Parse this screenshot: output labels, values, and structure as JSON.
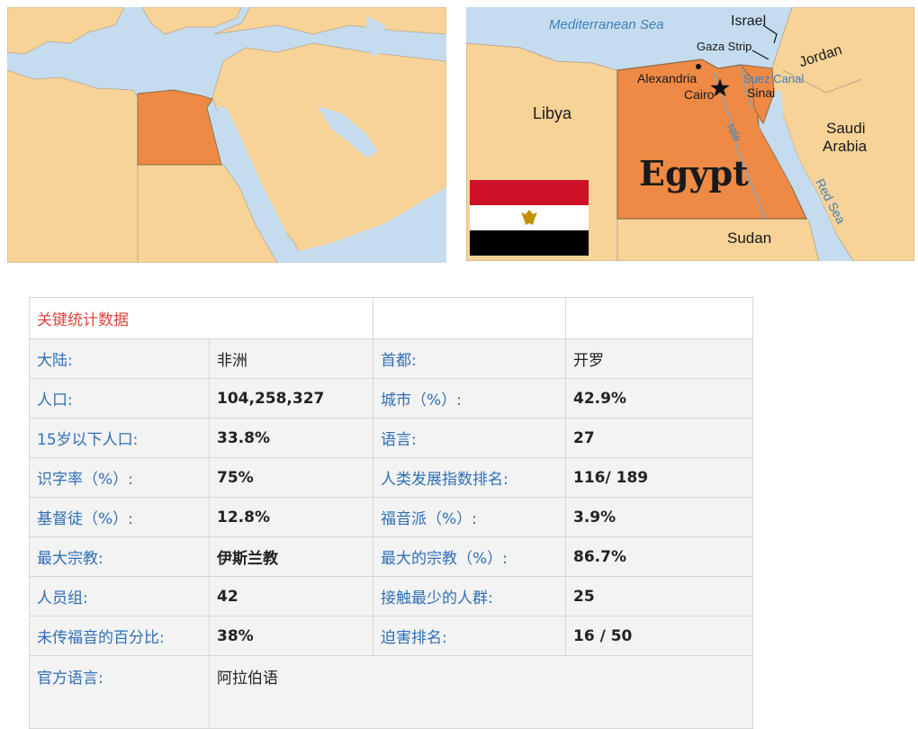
{
  "left_map": {},
  "right_map": {
    "labels": {
      "sea_med": "Mediterranean Sea",
      "israel": "Israel",
      "gaza": "Gaza Strip",
      "jordan": "Jordan",
      "alexandria": "Alexandria",
      "cairo": "Cairo",
      "suez": "Suez Canal",
      "sinai": "Sinai",
      "libya": "Libya",
      "saudi1": "Saudi",
      "saudi2": "Arabia",
      "nile": "Nile",
      "egypt": "Egypt",
      "red_sea": "Red Sea",
      "sudan": "Sudan"
    },
    "colors": {
      "water": "#c5dcef",
      "land": "#f7d398",
      "highlight": "#ee8a45",
      "border": "#b9a78e"
    },
    "flag": {
      "stripes": [
        "#ce1126",
        "#ffffff",
        "#000000"
      ],
      "emblem": "eagle-of-saladin-icon",
      "emblem_color": "#c09300"
    }
  },
  "table": {
    "title": "关键统计数据",
    "rows": [
      {
        "l1": "大陆:",
        "v1": "非洲",
        "l2": "首都:",
        "v2": "开罗"
      },
      {
        "l1": "人口:",
        "v1": "104,258,327",
        "l2": "城市（%）:",
        "v2": "42.9%"
      },
      {
        "l1": "15岁以下人口:",
        "v1": "33.8%",
        "l2": "语言:",
        "v2": "27"
      },
      {
        "l1": "识字率（%）:",
        "v1": "75%",
        "l2": "人类发展指数排名:",
        "v2": "116/ 189"
      },
      {
        "l1": "基督徒（%）:",
        "v1": "12.8%",
        "l2": "福音派（%）:",
        "v2": "3.9%"
      },
      {
        "l1": "最大宗教:",
        "v1": "伊斯兰教",
        "l2": "最大的宗教（%）:",
        "v2": "86.7%"
      },
      {
        "l1": "人员组:",
        "v1": "42",
        "l2": "接触最少的人群:",
        "v2": "25"
      },
      {
        "l1": "未传福音的百分比:",
        "v1": "38%",
        "l2": "迫害排名:",
        "v2": "16 / 50"
      }
    ],
    "last": {
      "label": "官方语言:",
      "value": "阿拉伯语"
    }
  }
}
